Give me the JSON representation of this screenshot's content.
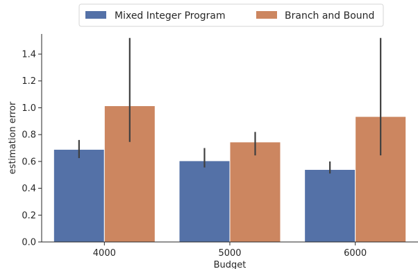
{
  "chart_data": {
    "type": "bar",
    "title": "",
    "xlabel": "Budget",
    "ylabel": "estimation error",
    "categories": [
      "4000",
      "5000",
      "6000"
    ],
    "series": [
      {
        "name": "Mixed Integer Program",
        "color": "#5471a7",
        "values": [
          0.69,
          0.605,
          0.54
        ],
        "error_low": [
          0.625,
          0.555,
          0.51
        ],
        "error_high": [
          0.76,
          0.7,
          0.6
        ]
      },
      {
        "name": "Branch and Bound",
        "color": "#cc8660",
        "values": [
          1.015,
          0.745,
          0.935
        ],
        "error_low": [
          0.745,
          0.645,
          0.645
        ],
        "error_high": [
          1.52,
          0.82,
          1.52
        ]
      }
    ],
    "ylim": [
      0,
      1.55
    ],
    "yticks": [
      "0.0",
      "0.2",
      "0.4",
      "0.6",
      "0.8",
      "1.0",
      "1.2",
      "1.4"
    ],
    "grid": false,
    "legend_position": "top-center"
  }
}
